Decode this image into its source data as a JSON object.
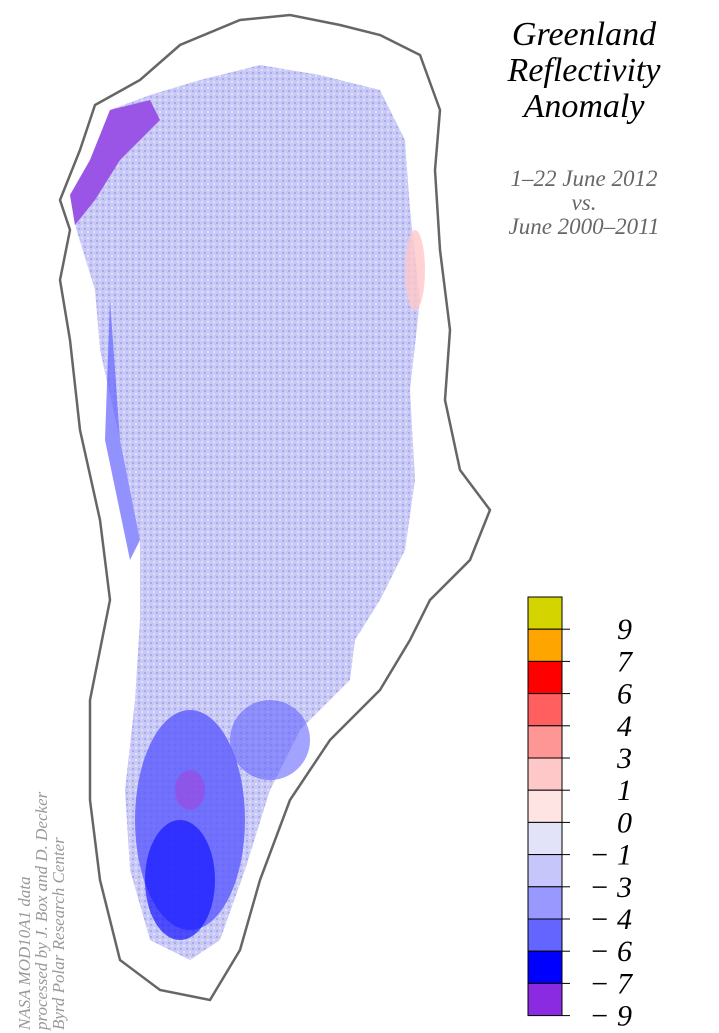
{
  "header": {
    "title": [
      "Greenland",
      "Reflectivity",
      "Anomaly"
    ],
    "subtitle": [
      "1–22 June 2012",
      "vs.",
      "June 2000–2011"
    ]
  },
  "credit": [
    "NASA MOD10A1 data",
    "processed by J. Box and D. Decker",
    "Byrd Polar Research Center"
  ],
  "legend": {
    "items": [
      {
        "label": "9",
        "color": "#d4d400"
      },
      {
        "label": "7",
        "color": "#ffa500"
      },
      {
        "label": "6",
        "color": "#ff0000"
      },
      {
        "label": "4",
        "color": "#ff5f5f"
      },
      {
        "label": "3",
        "color": "#ff9696"
      },
      {
        "label": "1",
        "color": "#ffc8c8"
      },
      {
        "label": "0",
        "color": "#ffe4e4"
      },
      {
        "label": "− 1",
        "color": "#e2e2f8"
      },
      {
        "label": "− 3",
        "color": "#c6c6fa"
      },
      {
        "label": "− 4",
        "color": "#9898ff"
      },
      {
        "label": "− 6",
        "color": "#6464ff"
      },
      {
        "label": "− 7",
        "color": "#0000ff"
      },
      {
        "label": "− 9",
        "color": "#8a2be2"
      }
    ]
  }
}
